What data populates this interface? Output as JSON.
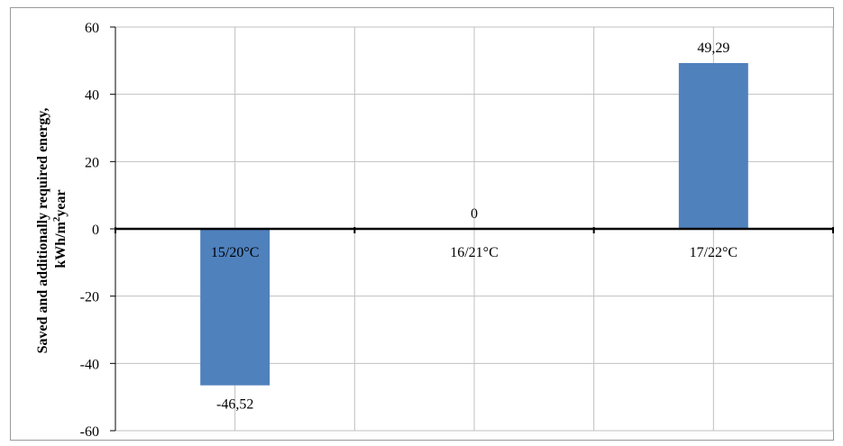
{
  "chart_data": {
    "type": "bar",
    "categories": [
      "15/20°C",
      "16/21°C",
      "17/22°C"
    ],
    "values": [
      -46.52,
      0,
      49.29
    ],
    "data_labels": [
      "-46,52",
      "0",
      "49,29"
    ],
    "title": "",
    "xlabel": "",
    "ylabel_line1": "Saved and additionally required energy,",
    "ylabel_line2_pre": "kWh/m",
    "ylabel_line2_sup": "2",
    "ylabel_line2_post": "year",
    "ylim": [
      -60,
      60
    ],
    "yticks": [
      -60,
      -40,
      -20,
      0,
      20,
      40,
      60
    ],
    "ytick_labels": [
      "-60",
      "-40",
      "-20",
      "0",
      "20",
      "40",
      "60"
    ],
    "grid": true,
    "legend": "none",
    "bar_color": "#4f81bd",
    "grid_color": "#c0c0c0",
    "axis_color": "#000000"
  }
}
